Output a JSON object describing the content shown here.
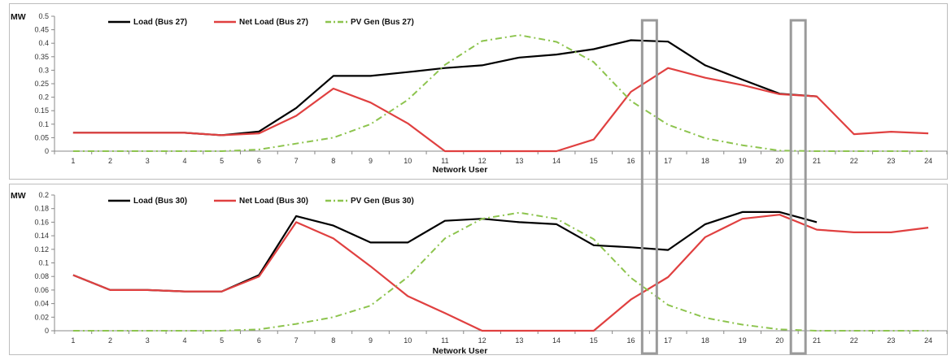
{
  "chart_data": [
    {
      "type": "line",
      "ylabel": "MW",
      "xlabel": "Network User",
      "ylim": [
        0,
        0.5
      ],
      "yticks": [
        "0",
        "0.05",
        "0.1",
        "0.15",
        "0.2",
        "0.25",
        "0.3",
        "0.35",
        "0.4",
        "0.45",
        "0.5"
      ],
      "categories": [
        "1",
        "2",
        "3",
        "4",
        "5",
        "6",
        "7",
        "8",
        "9",
        "10",
        "11",
        "12",
        "13",
        "14",
        "15",
        "16",
        "17",
        "18",
        "19",
        "20",
        "21",
        "22",
        "23",
        "24"
      ],
      "series": [
        {
          "name": "Load (Bus 27)",
          "color": "#000000",
          "style": "solid",
          "values": [
            0.068,
            0.068,
            0.068,
            0.068,
            0.059,
            0.073,
            0.16,
            0.279,
            0.279,
            0.293,
            0.308,
            0.318,
            0.347,
            0.358,
            0.378,
            0.411,
            0.406,
            0.318,
            0.265,
            0.213,
            0.203,
            null,
            null,
            null
          ]
        },
        {
          "name": "Net Load (Bus 27)",
          "color": "#e04040",
          "style": "solid",
          "values": [
            0.068,
            0.068,
            0.068,
            0.068,
            0.059,
            0.066,
            0.131,
            0.232,
            0.18,
            0.103,
            0,
            0,
            0,
            0,
            0.043,
            0.22,
            0.308,
            0.272,
            0.245,
            0.211,
            0.203,
            0.063,
            0.072,
            0.066
          ]
        },
        {
          "name": "PV Gen (Bus 27)",
          "color": "#8dc44e",
          "style": "dashdot",
          "values": [
            0,
            0,
            0,
            0,
            0,
            0.006,
            0.028,
            0.05,
            0.1,
            0.19,
            0.32,
            0.408,
            0.43,
            0.405,
            0.33,
            0.186,
            0.098,
            0.048,
            0.022,
            0.002,
            0,
            0,
            0,
            0
          ]
        }
      ],
      "legend": "top-left"
    },
    {
      "type": "line",
      "ylabel": "MW",
      "xlabel": "Network User",
      "ylim": [
        0,
        0.2
      ],
      "yticks": [
        "0",
        "0.02",
        "0.04",
        "0.06",
        "0.08",
        "0.1",
        "0.12",
        "0.14",
        "0.16",
        "0.18",
        "0.2"
      ],
      "categories": [
        "1",
        "2",
        "3",
        "4",
        "5",
        "6",
        "7",
        "8",
        "9",
        "10",
        "11",
        "12",
        "13",
        "14",
        "15",
        "16",
        "17",
        "18",
        "19",
        "20",
        "21",
        "22",
        "23",
        "24"
      ],
      "series": [
        {
          "name": "Load (Bus 30)",
          "color": "#000000",
          "style": "solid",
          "values": [
            0.082,
            0.06,
            0.06,
            0.058,
            0.058,
            0.082,
            0.169,
            0.155,
            0.13,
            0.13,
            0.162,
            0.165,
            0.16,
            0.157,
            0.126,
            0.123,
            0.119,
            0.157,
            0.175,
            0.175,
            0.16,
            null,
            null,
            null
          ]
        },
        {
          "name": "Net Load (Bus 30)",
          "color": "#e04040",
          "style": "solid",
          "values": [
            0.082,
            0.06,
            0.06,
            0.058,
            0.058,
            0.08,
            0.16,
            0.136,
            0.095,
            0.051,
            0.026,
            0,
            0,
            0,
            0,
            0.046,
            0.079,
            0.138,
            0.165,
            0.171,
            0.149,
            0.145,
            0.145,
            0.152
          ]
        },
        {
          "name": "PV Gen (Bus 30)",
          "color": "#8dc44e",
          "style": "dashdot",
          "values": [
            0,
            0,
            0,
            0,
            0,
            0.002,
            0.01,
            0.02,
            0.037,
            0.079,
            0.136,
            0.165,
            0.174,
            0.165,
            0.135,
            0.078,
            0.038,
            0.019,
            0.009,
            0.002,
            0,
            0,
            0,
            0
          ]
        }
      ],
      "legend": "top-left"
    }
  ],
  "highlight_boxes_between": [
    [
      16,
      17
    ],
    [
      20,
      21
    ]
  ]
}
